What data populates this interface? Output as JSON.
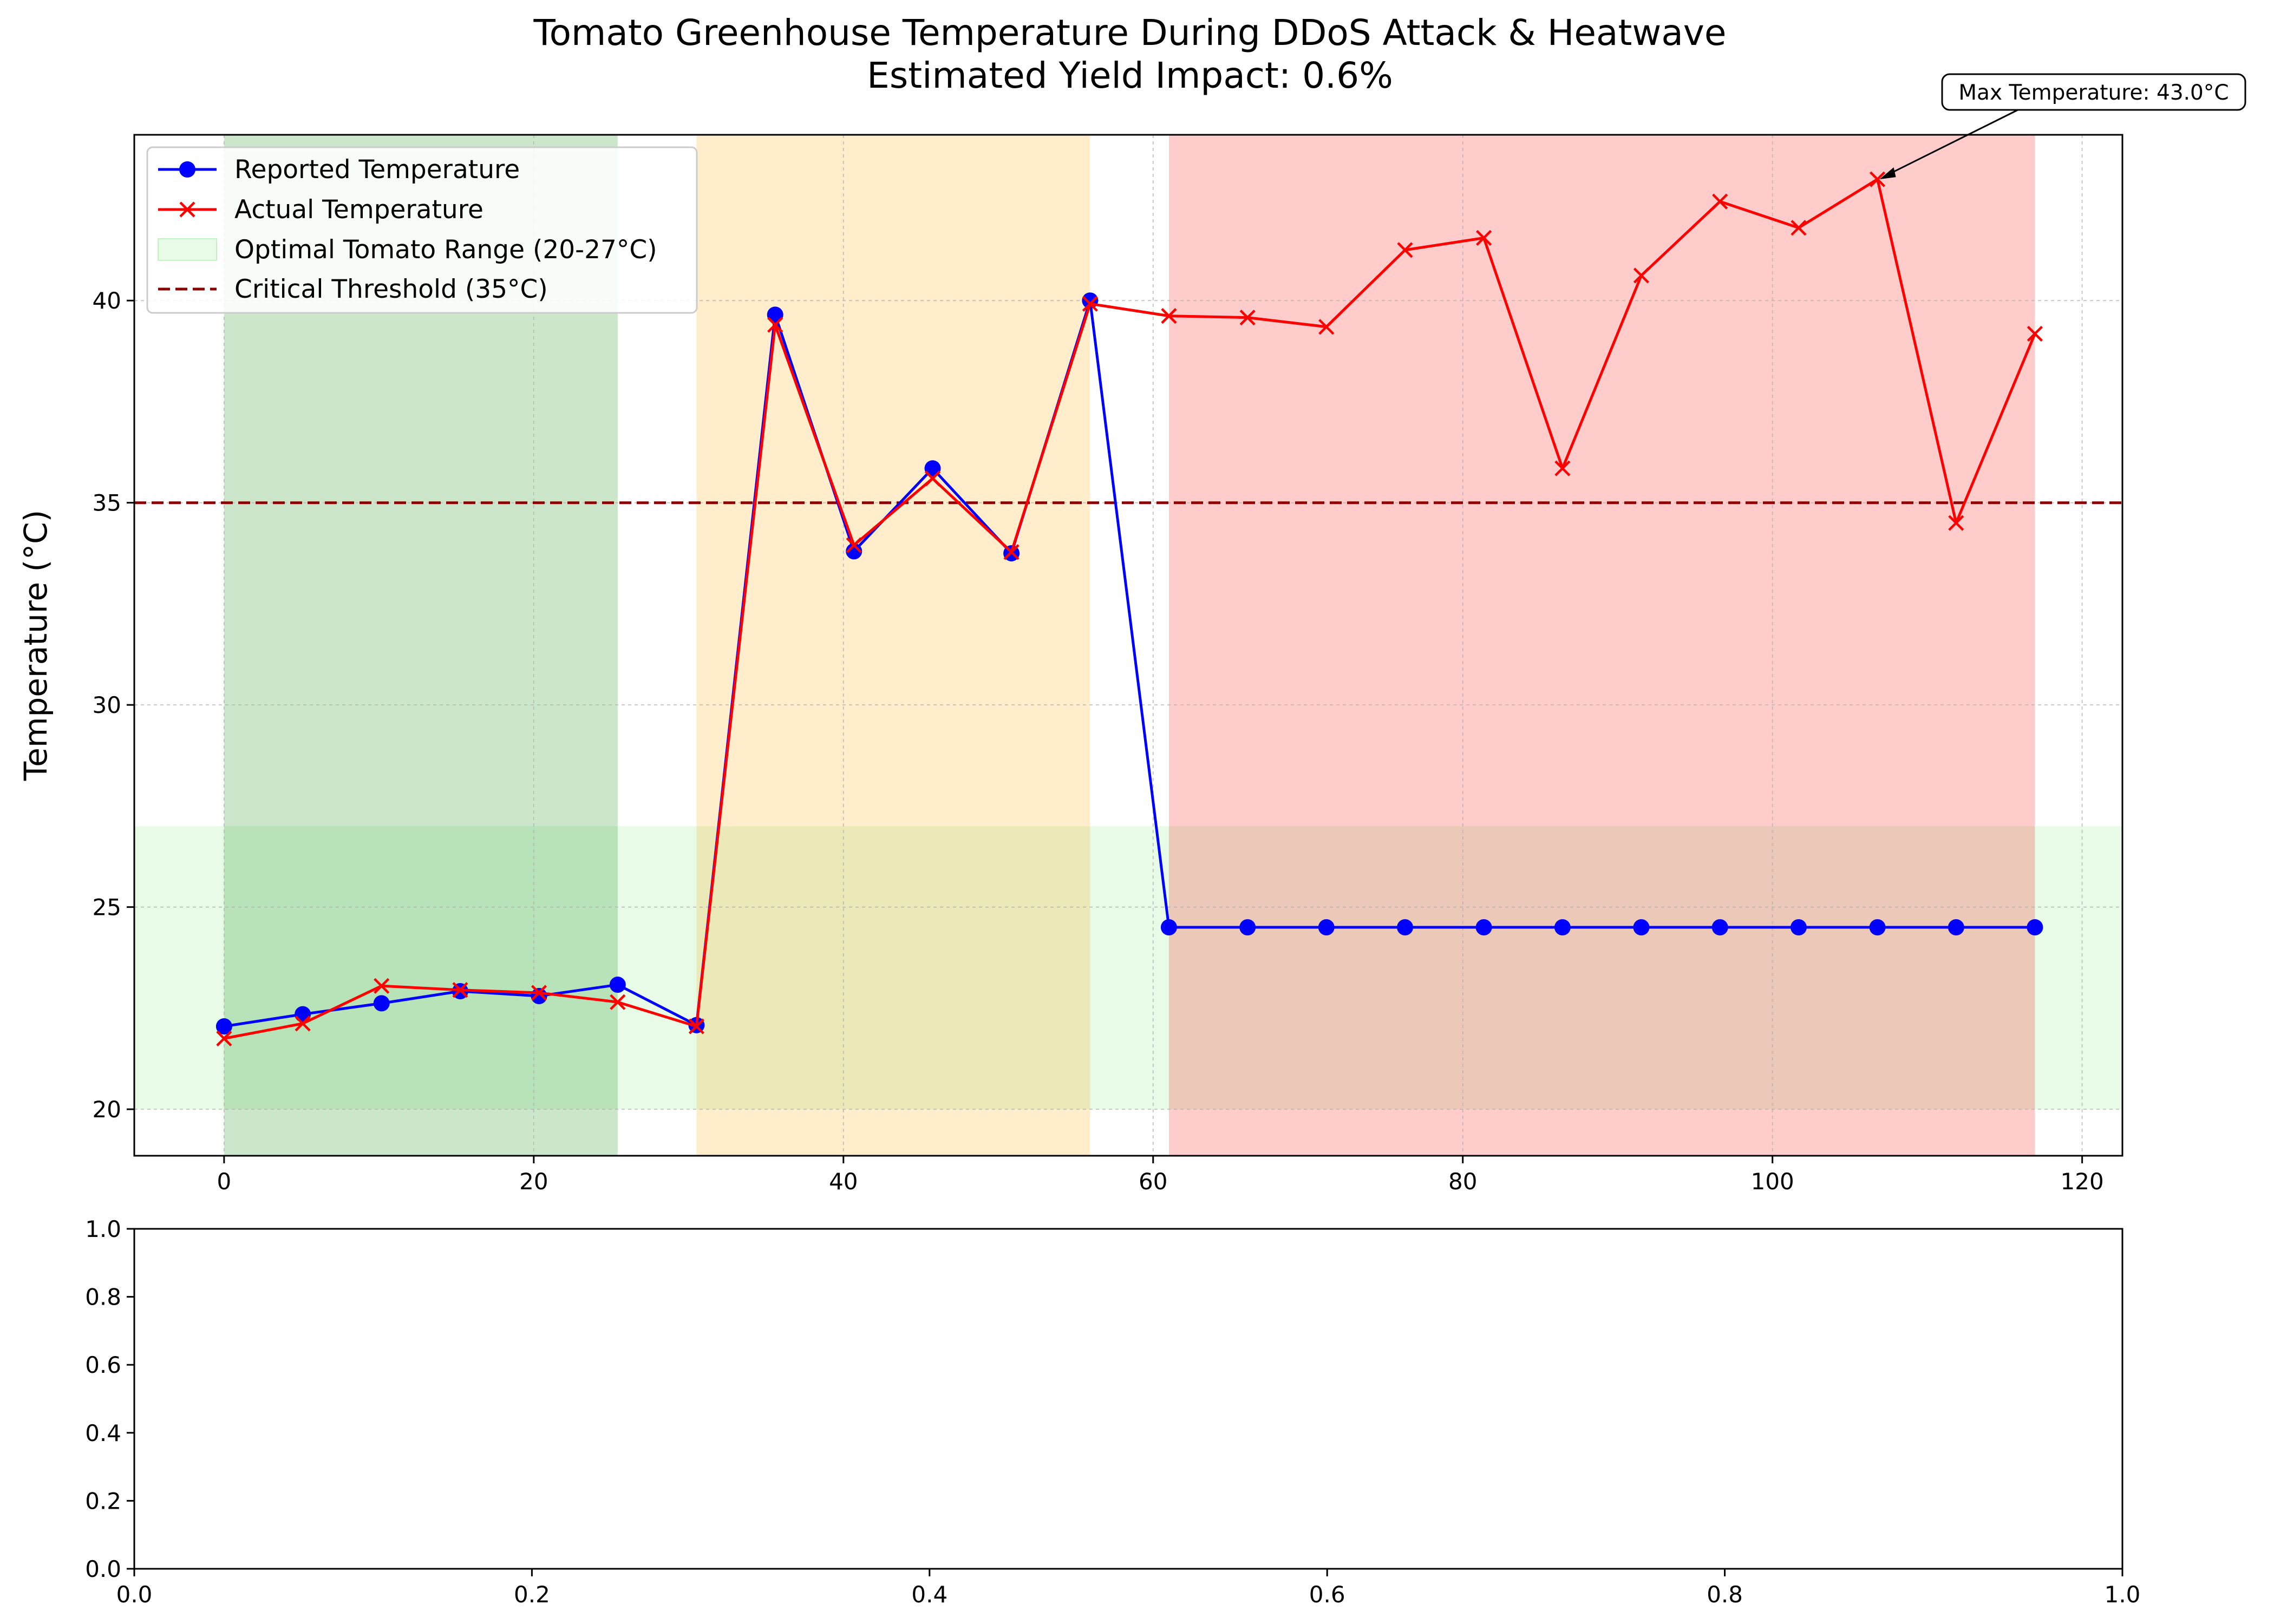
{
  "chart_data": [
    {
      "type": "line",
      "title": "Tomato Greenhouse Temperature During DDoS Attack & Heatwave",
      "subtitle": "Estimated Yield Impact: 0.6%",
      "xlabel": "",
      "ylabel": "Temperature (°C)",
      "xlim": [
        -5.8,
        122.6
      ],
      "ylim": [
        18.85,
        44.1
      ],
      "x_ticks": [
        0,
        20,
        40,
        60,
        80,
        100,
        120
      ],
      "y_ticks": [
        20,
        25,
        30,
        35,
        40
      ],
      "grid": true,
      "legend_position": "upper-left",
      "x": [
        0,
        5.08,
        10.17,
        15.25,
        20.34,
        25.42,
        30.51,
        35.59,
        40.68,
        45.76,
        50.85,
        55.93,
        61.02,
        66.1,
        71.19,
        76.27,
        81.36,
        86.44,
        91.53,
        96.61,
        101.69,
        106.78,
        111.86,
        116.95
      ],
      "series": [
        {
          "name": "Reported Temperature",
          "color": "#0000ff",
          "marker": "circle",
          "values": [
            22.05,
            22.35,
            22.62,
            22.92,
            22.8,
            23.08,
            22.08,
            39.65,
            33.8,
            35.85,
            33.75,
            40.0,
            24.5,
            24.5,
            24.5,
            24.5,
            24.5,
            24.5,
            24.5,
            24.5,
            24.5,
            24.5,
            24.5,
            24.5
          ]
        },
        {
          "name": "Actual Temperature",
          "color": "#ff0000",
          "marker": "x",
          "values": [
            21.75,
            22.12,
            23.05,
            22.95,
            22.88,
            22.65,
            22.05,
            39.4,
            33.95,
            35.6,
            33.78,
            39.92,
            39.62,
            39.58,
            39.35,
            41.25,
            41.55,
            35.85,
            40.62,
            42.45,
            41.8,
            43.0,
            34.5,
            39.18
          ]
        }
      ],
      "bands": [
        {
          "name": "Optimal Tomato Range (20-27°C)",
          "axis": "y",
          "from": 20,
          "to": 27,
          "color": "#90ee90",
          "opacity": 0.22
        },
        {
          "axis": "x",
          "from": 0,
          "to": 25.42,
          "color": "#008000",
          "opacity": 0.2
        },
        {
          "axis": "x",
          "from": 30.51,
          "to": 55.93,
          "color": "#ffa500",
          "opacity": 0.2
        },
        {
          "axis": "x",
          "from": 61.02,
          "to": 116.95,
          "color": "#ff0000",
          "opacity": 0.2
        }
      ],
      "thresholds": [
        {
          "name": "Critical Threshold (35°C)",
          "axis": "y",
          "value": 35,
          "color": "#8b0000"
        }
      ],
      "annotation": {
        "text": "Max Temperature: 43.0°C",
        "x": 106.78,
        "y": 43.0
      }
    },
    {
      "type": "line",
      "title": "",
      "xlabel": "",
      "ylabel": "",
      "xlim": [
        0,
        1
      ],
      "ylim": [
        0,
        1
      ],
      "x_ticks": [
        0.0,
        0.2,
        0.4,
        0.6,
        0.8,
        1.0
      ],
      "y_ticks": [
        0.0,
        0.2,
        0.4,
        0.6,
        0.8,
        1.0
      ],
      "x_tick_labels": [
        "0.0",
        "0.2",
        "0.4",
        "0.6",
        "0.8",
        "1.0"
      ],
      "y_tick_labels": [
        "0.0",
        "0.2",
        "0.4",
        "0.6",
        "0.8",
        "1.0"
      ],
      "grid": false,
      "series": []
    }
  ]
}
